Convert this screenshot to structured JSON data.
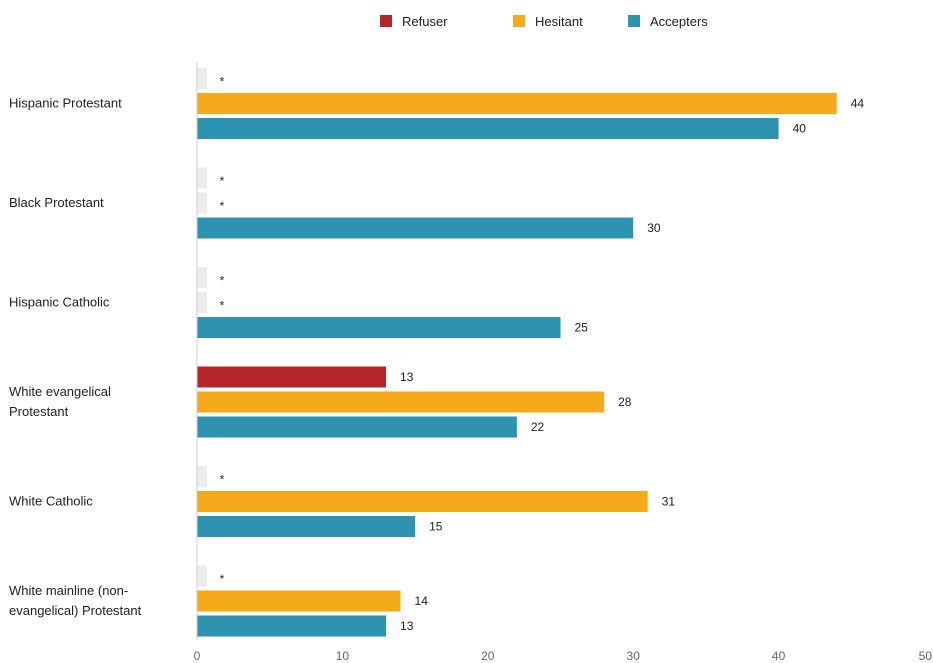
{
  "chart_data": {
    "type": "bar",
    "orientation": "horizontal",
    "title": "",
    "xlabel": "",
    "ylabel": "",
    "xlim": [
      0,
      50
    ],
    "xticks": [
      0,
      10,
      20,
      30,
      40,
      50
    ],
    "grid": false,
    "legend_position": "top",
    "categories": [
      [
        "Hispanic Protestant"
      ],
      [
        "Black Protestant"
      ],
      [
        "Hispanic Catholic"
      ],
      [
        "White evangelical",
        "Protestant"
      ],
      [
        "White Catholic"
      ],
      [
        "White mainline (non-",
        "evangelical) Protestant"
      ]
    ],
    "series": [
      {
        "name": "Refuser",
        "color": "#b5252a",
        "values": [
          null,
          null,
          null,
          13,
          null,
          null
        ]
      },
      {
        "name": "Hesitant",
        "color": "#f5aa1c",
        "values": [
          44,
          null,
          null,
          28,
          31,
          14
        ]
      },
      {
        "name": "Accepters",
        "color": "#2e92b1",
        "values": [
          40,
          30,
          25,
          22,
          15,
          13
        ]
      }
    ],
    "missing_marker": "*",
    "missing_color": "#ececec"
  }
}
